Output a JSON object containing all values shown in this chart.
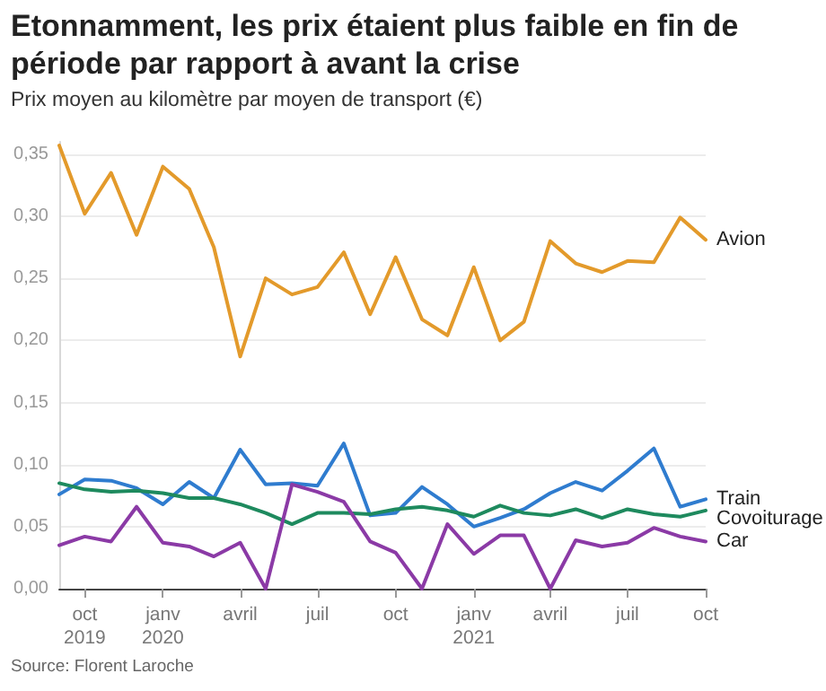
{
  "chart_data": {
    "type": "line",
    "title": "Etonnamment, les prix étaient plus faible en fin de période par rapport à avant la crise",
    "subtitle": "Prix moyen au kilomètre par moyen de transport (€)",
    "annotations": [
      "Source: Florent Laroche"
    ],
    "x": [
      "2019-09",
      "2019-10",
      "2019-11",
      "2019-12",
      "2020-01",
      "2020-02",
      "2020-03",
      "2020-04",
      "2020-05",
      "2020-06",
      "2020-07",
      "2020-08",
      "2020-09",
      "2020-10",
      "2020-11",
      "2020-12",
      "2021-01",
      "2021-02",
      "2021-03",
      "2021-04",
      "2021-05",
      "2021-06",
      "2021-07",
      "2021-08",
      "2021-09",
      "2021-10"
    ],
    "series": [
      {
        "name": "Avion",
        "color": "#e39a2b",
        "values": [
          0.357,
          0.302,
          0.335,
          0.285,
          0.34,
          0.322,
          0.275,
          0.187,
          0.25,
          0.237,
          0.243,
          0.271,
          0.221,
          0.267,
          0.217,
          0.204,
          0.259,
          0.2,
          0.215,
          0.28,
          0.262,
          0.255,
          0.264,
          0.263,
          0.299,
          0.281
        ]
      },
      {
        "name": "Train",
        "color": "#2f7ccf",
        "values": [
          0.076,
          0.088,
          0.087,
          0.081,
          0.068,
          0.086,
          0.073,
          0.112,
          0.084,
          0.085,
          0.083,
          0.117,
          0.059,
          0.061,
          0.082,
          0.068,
          0.05,
          0.057,
          0.064,
          0.077,
          0.086,
          0.079,
          0.095,
          0.113,
          0.066,
          0.072
        ]
      },
      {
        "name": "Covoiturage",
        "color": "#1e8a5e",
        "values": [
          0.085,
          0.08,
          0.078,
          0.079,
          0.077,
          0.073,
          0.073,
          0.068,
          0.061,
          0.052,
          0.061,
          0.061,
          0.06,
          0.064,
          0.066,
          0.063,
          0.058,
          0.067,
          0.061,
          0.059,
          0.064,
          0.057,
          0.064,
          0.06,
          0.058,
          0.063
        ]
      },
      {
        "name": "Car",
        "color": "#8b3aa6",
        "values": [
          0.035,
          0.042,
          0.038,
          0.066,
          0.037,
          0.034,
          0.026,
          0.037,
          0.0,
          0.084,
          0.078,
          0.07,
          0.038,
          0.029,
          0.0,
          0.052,
          0.028,
          0.043,
          0.043,
          0.0,
          0.039,
          0.034,
          0.037,
          0.049,
          0.042,
          0.038
        ]
      }
    ],
    "xlim": [
      "2019-09",
      "2021-10"
    ],
    "xticks": [
      {
        "value": "2019-10",
        "label": "oct\n2019"
      },
      {
        "value": "2020-01",
        "label": "janv\n2020"
      },
      {
        "value": "2020-04",
        "label": "avril"
      },
      {
        "value": "2020-07",
        "label": "juil"
      },
      {
        "value": "2020-10",
        "label": "oct"
      },
      {
        "value": "2021-01",
        "label": "janv\n2021"
      },
      {
        "value": "2021-04",
        "label": "avril"
      },
      {
        "value": "2021-07",
        "label": "juil"
      },
      {
        "value": "2021-10",
        "label": "oct"
      }
    ],
    "ylim": [
      0,
      0.36
    ],
    "yticks": [
      {
        "value": 0,
        "label": "0,00"
      },
      {
        "value": 0.05,
        "label": "0,05"
      },
      {
        "value": 0.1,
        "label": "0,10"
      },
      {
        "value": 0.15,
        "label": "0,15"
      },
      {
        "value": 0.2,
        "label": "0,20"
      },
      {
        "value": 0.25,
        "label": "0,25"
      },
      {
        "value": 0.3,
        "label": "0,30"
      },
      {
        "value": 0.35,
        "label": "0,35"
      }
    ],
    "grid": "y",
    "legend": false,
    "marker": "none",
    "line_style": "solid"
  }
}
